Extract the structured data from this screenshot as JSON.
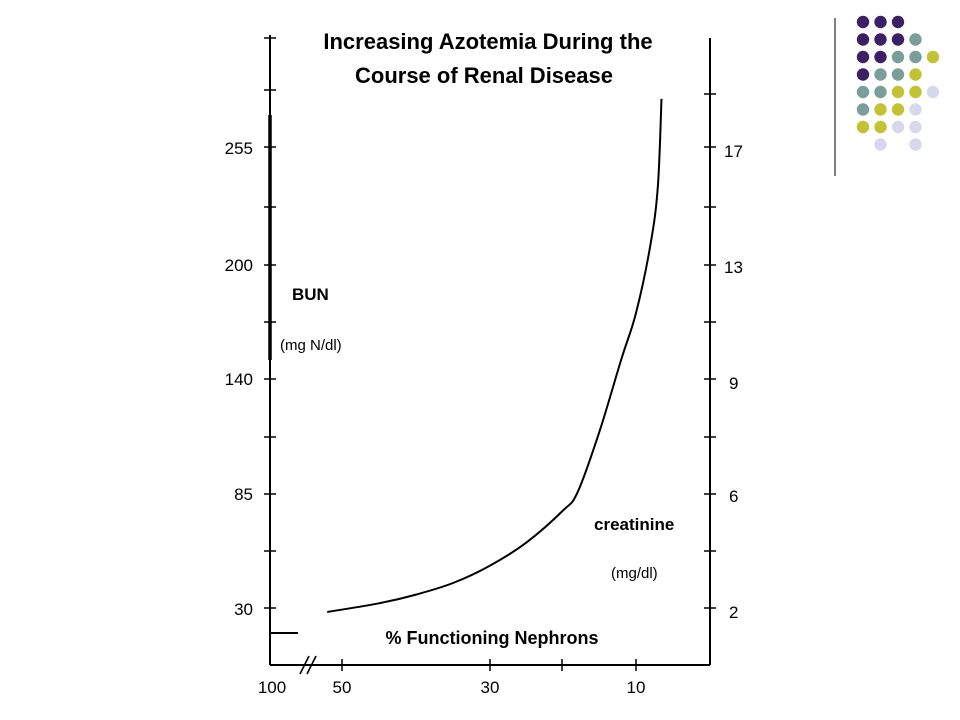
{
  "chart_data": {
    "type": "line",
    "title_lines": [
      "Increasing Azotemia During the",
      "Course of Renal Disease"
    ],
    "xlabel": "% Functioning Nephrons",
    "x_ticks": [
      "100",
      "50",
      "30",
      "10"
    ],
    "left_axis": {
      "name": "BUN",
      "unit": "(mg N/dl)",
      "ticks": [
        "255",
        "200",
        "140",
        "85",
        "30"
      ]
    },
    "right_axis": {
      "name": "creatinine",
      "unit": "(mg/dl)",
      "ticks": [
        "17",
        "13",
        "9",
        "6",
        "2"
      ]
    },
    "series": [
      {
        "x": [
          52,
          45,
          40,
          35,
          30,
          25,
          20,
          18,
          15,
          12,
          10,
          8,
          7,
          6.5
        ],
        "y": [
          2.0,
          2.3,
          2.6,
          3.0,
          3.6,
          4.4,
          5.5,
          6.1,
          7.7,
          9.8,
          11.4,
          13.8,
          15.8,
          18.8
        ]
      }
    ],
    "x_axis_break": true
  },
  "decoration": {
    "dot_colors": [
      "#3d1f66",
      "#7a9e9a",
      "#c2c232",
      "#d8d8ec"
    ]
  }
}
